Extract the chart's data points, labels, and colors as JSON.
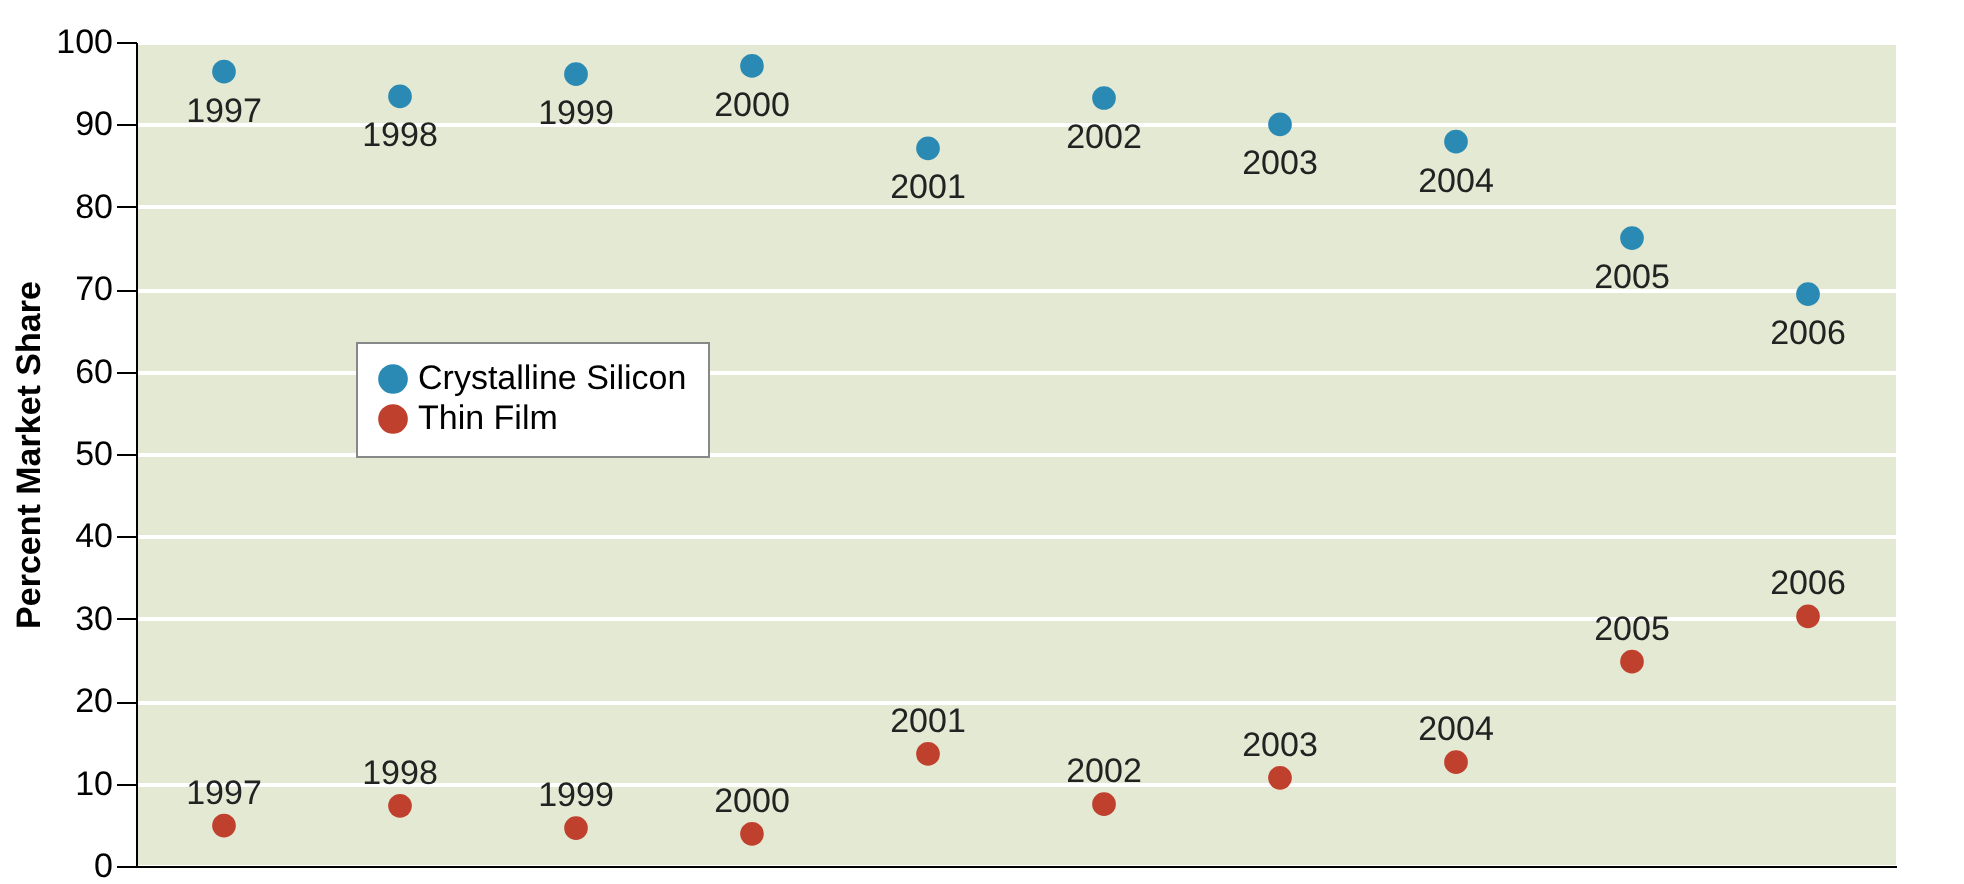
{
  "chart_data": {
    "type": "scatter",
    "ylabel": "Percent Market Share",
    "categories": [
      "1997",
      "1998",
      "1999",
      "2000",
      "2001",
      "2002",
      "2003",
      "2004",
      "2005",
      "2006"
    ],
    "series": [
      {
        "name": "Crystalline Silicon",
        "color": "#2b8ab3",
        "values": [
          96.4,
          93.4,
          96.1,
          97.1,
          87.1,
          93.2,
          90.0,
          87.9,
          76.2,
          69.4
        ]
      },
      {
        "name": "Thin Film",
        "color": "#c0402e",
        "values": [
          4.9,
          7.3,
          4.6,
          3.9,
          13.6,
          7.5,
          10.7,
          12.6,
          24.8,
          30.3
        ]
      }
    ],
    "ylim": [
      0,
      100
    ],
    "yticks": [
      0,
      10,
      20,
      30,
      40,
      50,
      60,
      70,
      80,
      90,
      100
    ],
    "grid": "y",
    "legend": "left",
    "marker": "circle",
    "tick_labels": "y"
  }
}
